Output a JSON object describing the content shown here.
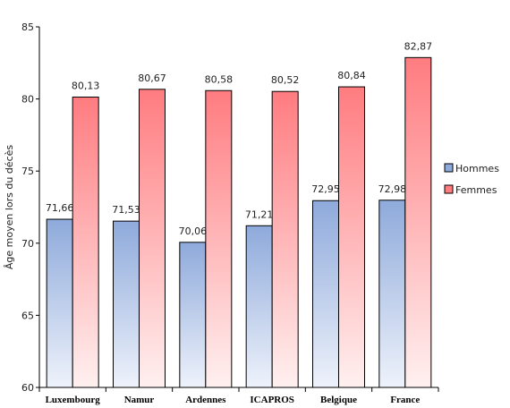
{
  "chart_data": {
    "type": "bar",
    "title": "",
    "xlabel": "",
    "ylabel": "Âge moyen lors du décès",
    "ylim": [
      60,
      85
    ],
    "yticks": [
      60,
      65,
      70,
      75,
      80,
      85
    ],
    "grid": false,
    "legend_position": "right",
    "categories": [
      "Luxembourg",
      "Namur",
      "Ardennes",
      "ICAPROS",
      "Belgique",
      "France"
    ],
    "series": [
      {
        "name": "Hommes",
        "color": "#8eaadb",
        "values": [
          71.66,
          71.53,
          70.06,
          71.21,
          72.95,
          72.98
        ],
        "labels": [
          "71,66",
          "71,53",
          "70,06",
          "71,21",
          "72,95",
          "72,98"
        ]
      },
      {
        "name": "Femmes",
        "color": "#ff7c80",
        "values": [
          80.13,
          80.67,
          80.58,
          80.52,
          80.84,
          82.87
        ],
        "labels": [
          "80,13",
          "80,67",
          "80,58",
          "80,52",
          "80,84",
          "82,87"
        ]
      }
    ]
  }
}
